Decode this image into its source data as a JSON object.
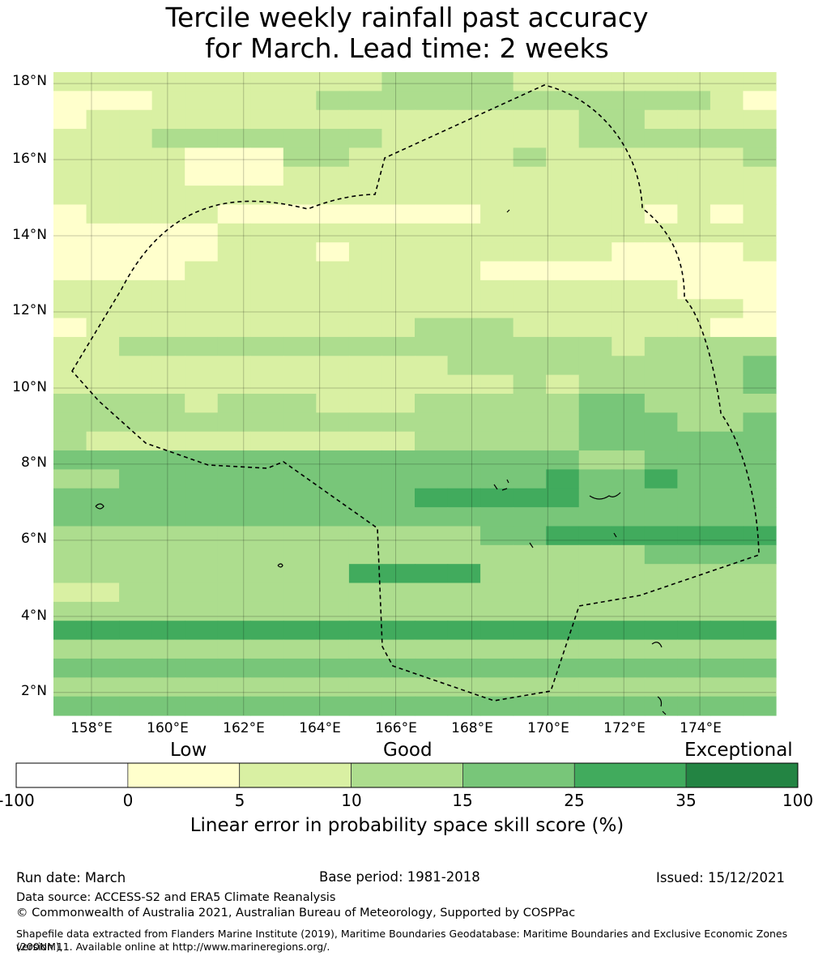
{
  "title": {
    "line1": "Tercile weekly rainfall past accuracy",
    "line2": "for March. Lead time: 2 weeks"
  },
  "map": {
    "lat_labels": [
      "18°N",
      "16°N",
      "14°N",
      "12°N",
      "10°N",
      "8°N",
      "6°N",
      "4°N",
      "2°N"
    ],
    "lon_labels": [
      "158°E",
      "160°E",
      "162°E",
      "164°E",
      "166°E",
      "168°E",
      "170°E",
      "172°E",
      "174°E"
    ],
    "lon_range": [
      157.0,
      176.0
    ],
    "lat_range": [
      1.4,
      18.3
    ],
    "grid": [
      "1111111111222211111111",
      "0001111122222222222210",
      "0111111111111111221111",
      "1112222222111111222222",
      "1111000221111121111112",
      "1111000111111111111111",
      "1111111111111111111111",
      "0111100000000111110101",
      "0000011111111111111111",
      "0000011101111111100001",
      "0000111111111000000000",
      "1111111111111111111000",
      "1111111111111111111110",
      "0111111111122211111100",
      "1122222222222222212222",
      "1111111111112222222223",
      "1111111111111121222223",
      "2222122211122222332222",
      "2222222222222222333223",
      "2111111111122222333333",
      "3333333333333333223333",
      "2233333333333334334333",
      "3333333333344444333333",
      "3333333333333333333333",
      "2222222222222334444444",
      "2222222222222222223333",
      "2222222224444222222222",
      "1122222222222222222222",
      "2222222222222222222222",
      "4444444444444444444444",
      "2222222222222222222222",
      "3333333333333333333333",
      "2222222222222222222222",
      "3333333333333333333333"
    ],
    "legend_colors": {
      "0": "#ffffcc",
      "1": "#d9f0a3",
      "2": "#addd8e",
      "3": "#78c679",
      "4": "#41ab5d",
      "5": "#238443"
    },
    "boundary_color": "#000000"
  },
  "colorbar": {
    "categories": {
      "low": "Low",
      "good": "Good",
      "exceptional": "Exceptional"
    },
    "ticks": [
      "-100",
      "0",
      "5",
      "10",
      "15",
      "25",
      "35",
      "100"
    ],
    "colors": [
      "#ffffff",
      "#ffffcc",
      "#d9f0a3",
      "#addd8e",
      "#78c679",
      "#41ab5d",
      "#238443"
    ],
    "title": "Linear error in probability space skill score (%)"
  },
  "footer": {
    "run_date": "Run date: March",
    "base_period": "Base period: 1981-2018",
    "issued": "Issued: 15/12/2021",
    "data_source": "Data source: ACCESS-S2 and ERA5 Climate Reanalysis",
    "copyright": "© Commonwealth of Australia 2021, Australian Bureau of Meteorology, Supported by COSPPac",
    "shapefile_line1": "Shapefile data extracted from Flanders Marine Institute (2019), Maritime Boundaries Geodatabase: Maritime Boundaries and Exclusive Economic Zones (200NM),",
    "shapefile_line2": "version 11. Available online at http://www.marineregions.org/."
  }
}
